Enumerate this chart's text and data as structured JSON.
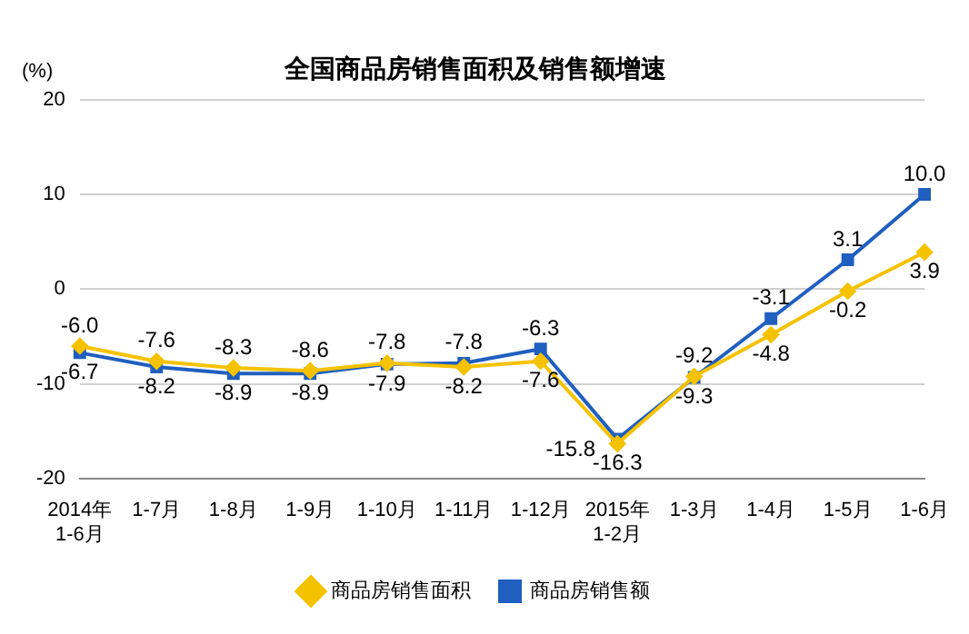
{
  "chart_data": {
    "type": "line",
    "title": "全国商品房销售面积及销售额增速",
    "ylabel": "(%)",
    "categories": [
      "2014年\n1-6月",
      "1-7月",
      "1-8月",
      "1-9月",
      "1-10月",
      "1-11月",
      "1-12月",
      "2015年\n1-2月",
      "1-3月",
      "1-4月",
      "1-5月",
      "1-6月"
    ],
    "series": [
      {
        "name": "商品房销售面积",
        "color": "#f5c200",
        "marker": "diamond",
        "values": [
          -6.0,
          -7.6,
          -8.3,
          -8.6,
          -7.8,
          -8.2,
          -7.6,
          -16.3,
          -9.2,
          -4.8,
          -0.2,
          3.9
        ],
        "value_labels": [
          "-6.0",
          "-7.6",
          "-8.3",
          "-8.6",
          "-7.8",
          "-8.2",
          "-7.6",
          "-16.3",
          "-9.2",
          "-4.8",
          "-0.2",
          "3.9"
        ]
      },
      {
        "name": "商品房销售额",
        "color": "#1f5fbf",
        "marker": "square",
        "values": [
          -6.7,
          -8.2,
          -8.9,
          -8.9,
          -7.9,
          -7.8,
          -6.3,
          -15.8,
          -9.3,
          -3.1,
          3.1,
          10.0
        ],
        "value_labels": [
          "-6.7",
          "-8.2",
          "-8.9",
          "-8.9",
          "-7.9",
          "-7.8",
          "-6.3",
          "-15.8",
          "-9.3",
          "-3.1",
          "3.1",
          "10.0"
        ]
      }
    ],
    "ylim": [
      -20,
      20
    ],
    "yticks": [
      -20,
      -10,
      0,
      10,
      20
    ],
    "grid": "y",
    "legend": "bottom"
  }
}
